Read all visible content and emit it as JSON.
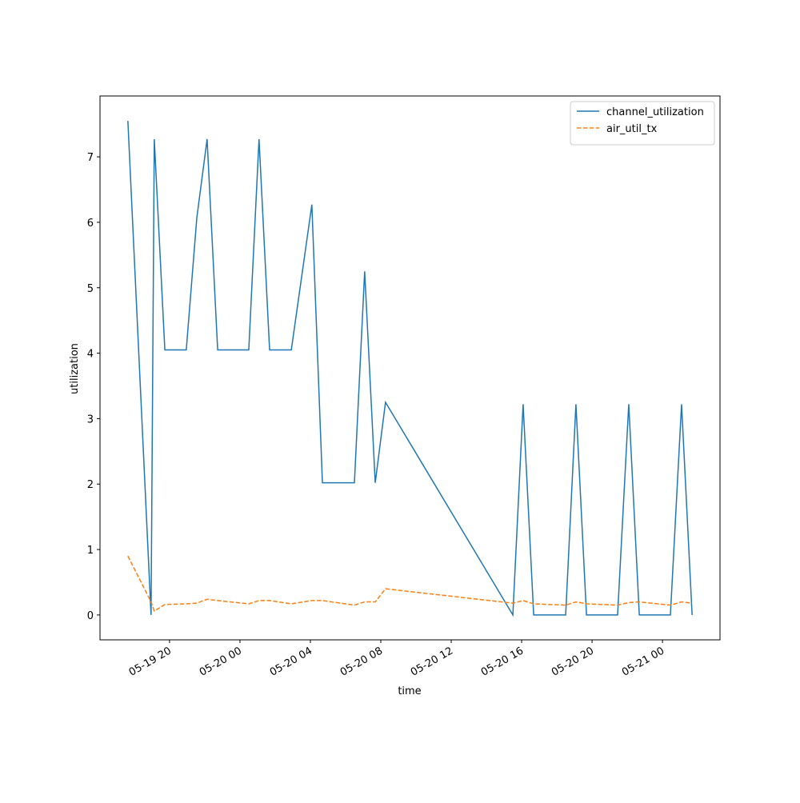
{
  "chart_data": {
    "type": "line",
    "xlabel": "time",
    "ylabel": "utilization",
    "x": [
      "05-19 17:38",
      "05-19 18:57",
      "05-19 19:08",
      "05-19 19:44",
      "05-19 20:57",
      "05-19 21:33",
      "05-19 22:08",
      "05-19 22:44",
      "05-20 00:30",
      "05-20 01:05",
      "05-20 01:41",
      "05-20 02:55",
      "05-20 04:05",
      "05-20 04:41",
      "05-20 06:30",
      "05-20 07:05",
      "05-20 07:41",
      "05-20 08:16",
      "05-20 15:30",
      "05-20 16:05",
      "05-20 16:41",
      "05-20 18:30",
      "05-20 19:05",
      "05-20 19:41",
      "05-20 21:27",
      "05-20 22:05",
      "05-20 22:41",
      "05-21 00:27",
      "05-21 01:05",
      "05-21 01:41"
    ],
    "series": [
      {
        "name": "channel_utilization",
        "color": "#1f77b4",
        "dash": false,
        "values": [
          7.55,
          0,
          7.27,
          4.05,
          4.05,
          6.07,
          7.27,
          4.05,
          4.05,
          7.27,
          4.05,
          4.05,
          6.27,
          2.02,
          2.02,
          5.25,
          2.02,
          3.25,
          0,
          3.22,
          0,
          0,
          3.22,
          0,
          0,
          3.22,
          0,
          0,
          3.22,
          0
        ]
      },
      {
        "name": "air_util_tx",
        "color": "#ff7f0e",
        "dash": true,
        "values": [
          0.9,
          0.2,
          0.06,
          0.16,
          0.17,
          0.18,
          0.24,
          0.22,
          0.17,
          0.22,
          0.22,
          0.17,
          0.22,
          0.22,
          0.15,
          0.2,
          0.2,
          0.4,
          0.18,
          0.22,
          0.17,
          0.15,
          0.2,
          0.17,
          0.15,
          0.19,
          0.2,
          0.15,
          0.2,
          0.18
        ]
      }
    ],
    "xlim": [
      "05-19 16:03",
      "05-21 03:16"
    ],
    "xticks": [
      "05-19 20",
      "05-20 00",
      "05-20 04",
      "05-20 08",
      "05-20 12",
      "05-20 16",
      "05-20 20",
      "05-21 00"
    ],
    "ylim": [
      -0.38,
      7.93
    ],
    "yticks": [
      0,
      1,
      2,
      3,
      4,
      5,
      6,
      7
    ],
    "legend": "upper right"
  }
}
